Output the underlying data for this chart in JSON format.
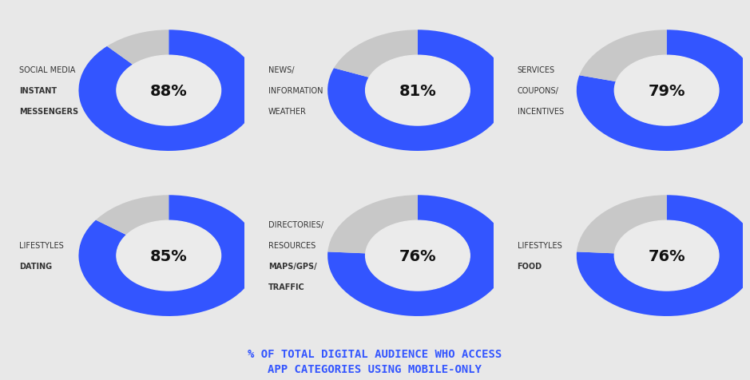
{
  "charts": [
    {
      "label_lines": [
        "SOCIAL MEDIA",
        "INSTANT",
        "MESSENGERS"
      ],
      "label_bold": [
        false,
        true,
        true
      ],
      "value": 88,
      "pct_text": "88%"
    },
    {
      "label_lines": [
        "NEWS/",
        "INFORMATION",
        "WEATHER"
      ],
      "label_bold": [
        false,
        false,
        false
      ],
      "value": 81,
      "pct_text": "81%"
    },
    {
      "label_lines": [
        "SERVICES",
        "COUPONS/",
        "INCENTIVES"
      ],
      "label_bold": [
        false,
        false,
        false
      ],
      "value": 79,
      "pct_text": "79%"
    },
    {
      "label_lines": [
        "LIFESTYLES",
        "DATING"
      ],
      "label_bold": [
        false,
        true
      ],
      "value": 85,
      "pct_text": "85%"
    },
    {
      "label_lines": [
        "DIRECTORIES/",
        "RESOURCES",
        "MAPS/GPS/",
        "TRAFFIC"
      ],
      "label_bold": [
        false,
        false,
        true,
        true
      ],
      "value": 76,
      "pct_text": "76%"
    },
    {
      "label_lines": [
        "LIFESTYLES",
        "FOOD"
      ],
      "label_bold": [
        false,
        true
      ],
      "value": 76,
      "pct_text": "76%"
    }
  ],
  "blue_color": "#3355FF",
  "gray_color": "#C8C8C8",
  "bg_color": "#E8E8E8",
  "cell_bg": "#EBEBEB",
  "title_line1": "% OF TOTAL DIGITAL AUDIENCE WHO ACCESS",
  "title_line2": "APP CATEGORIES USING MOBILE-ONLY",
  "title_color": "#3355FF",
  "label_color": "#333333",
  "pct_color": "#111111"
}
